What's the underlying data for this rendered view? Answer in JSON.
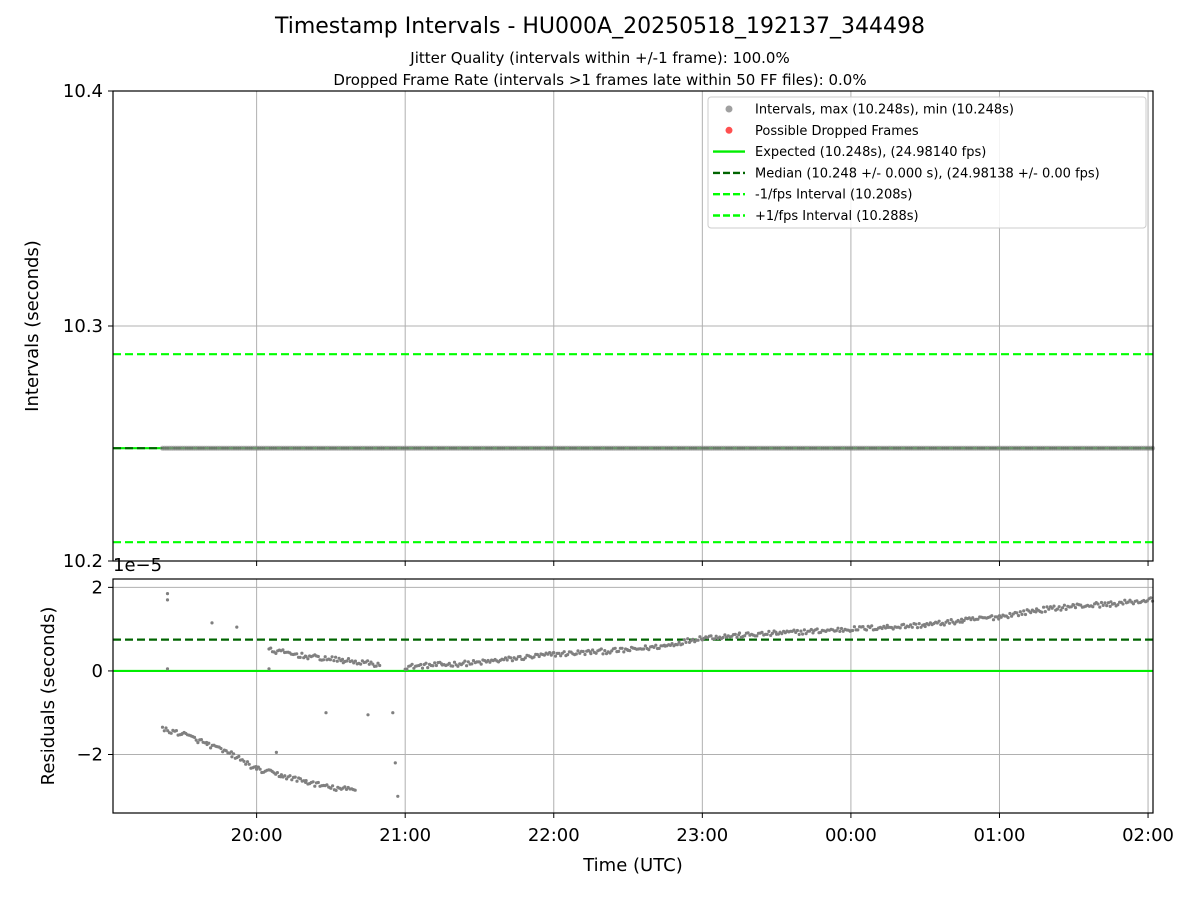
{
  "title": "Timestamp Intervals - HU000A_20250518_192137_344498",
  "subtitles": [
    "Jitter Quality (intervals within +/-1 frame): 100.0%",
    "Dropped Frame Rate (intervals >1 frames late within 50 FF files): 0.0%"
  ],
  "colors": {
    "intervals": "#808080",
    "dropped": "#ff5050",
    "expected": "#00ee00",
    "median": "#006400",
    "fps_bounds": "#00ff00",
    "grid": "#b0b0b0"
  },
  "chart_data": [
    {
      "type": "scatter",
      "ylabel": "Intervals (seconds)",
      "ylim": [
        10.2,
        10.4
      ],
      "yticks": [
        "10.2",
        "10.3",
        "10.4"
      ],
      "xlim": [
        "2025-05-18T19:02",
        "2025-05-19T02:02"
      ],
      "xticks": [
        "20:00",
        "21:00",
        "22:00",
        "23:00",
        "00:00",
        "01:00",
        "02:00"
      ],
      "grid": true,
      "legend_position": "upper right",
      "legend": [
        {
          "label": "Intervals, max (10.248s), min (10.248s)",
          "marker": "dot",
          "color": "#a0a0a0"
        },
        {
          "label": "Possible Dropped Frames",
          "marker": "dot",
          "color": "#ff5050"
        },
        {
          "label": "Expected (10.248s), (24.98140 fps)",
          "marker": "solid",
          "color": "#00ee00"
        },
        {
          "label": "Median (10.248 +/- 0.000 s), (24.98138 +/- 0.00 fps)",
          "marker": "dashed",
          "color": "#006400"
        },
        {
          "label": "-1/fps Interval (10.208s)",
          "marker": "dashed",
          "color": "#00ff00"
        },
        {
          "label": "+1/fps Interval (10.288s)",
          "marker": "dashed",
          "color": "#00ff00"
        }
      ],
      "reference_lines": [
        {
          "name": "Expected",
          "value": 10.248,
          "style": "solid"
        },
        {
          "name": "Median",
          "value": 10.248,
          "style": "dashed"
        },
        {
          "name": "-1/fps Interval",
          "value": 10.208,
          "style": "dashed"
        },
        {
          "name": "+1/fps Interval",
          "value": 10.288,
          "style": "dashed"
        }
      ],
      "series": [
        {
          "x_range": [
            "2025-05-18T19:22",
            "2025-05-19T02:02"
          ],
          "value": 10.248
        }
      ]
    },
    {
      "type": "scatter",
      "ylabel": "Residuals (seconds)",
      "yscale_label": "1e−5",
      "ylim": [
        -3.4,
        2.2
      ],
      "yticks": [
        "−2",
        "0",
        "2"
      ],
      "xlabel": "Time (UTC)",
      "xlim": [
        "2025-05-18T19:02",
        "2025-05-19T02:02"
      ],
      "xticks": [
        "20:00",
        "21:00",
        "22:00",
        "23:00",
        "00:00",
        "01:00",
        "02:00"
      ],
      "grid": true,
      "reference_lines": [
        {
          "name": "Expected",
          "value": 0,
          "style": "solid"
        },
        {
          "name": "Median",
          "value": 0.75,
          "style": "dashed"
        }
      ],
      "series": [
        {
          "segment": "main trend",
          "x": [
            "2025-05-18T21:00",
            "2025-05-18T21:15",
            "2025-05-18T21:30",
            "2025-05-18T21:45",
            "2025-05-18T22:00",
            "2025-05-18T22:15",
            "2025-05-18T22:30",
            "2025-05-18T22:45",
            "2025-05-18T23:00",
            "2025-05-18T23:15",
            "2025-05-18T23:30",
            "2025-05-18T23:45",
            "2025-05-19T00:00",
            "2025-05-19T00:15",
            "2025-05-19T00:30",
            "2025-05-19T00:45",
            "2025-05-19T01:00",
            "2025-05-19T01:15",
            "2025-05-19T01:30",
            "2025-05-19T01:45",
            "2025-05-19T02:02"
          ],
          "y": [
            0.1,
            0.15,
            0.2,
            0.3,
            0.4,
            0.45,
            0.5,
            0.6,
            0.8,
            0.85,
            0.9,
            0.95,
            1.0,
            1.05,
            1.1,
            1.2,
            1.3,
            1.45,
            1.55,
            1.6,
            1.7
          ]
        },
        {
          "segment": "early cluster",
          "x": [
            "2025-05-18T20:05",
            "2025-05-18T20:20",
            "2025-05-18T20:35",
            "2025-05-18T20:50"
          ],
          "y": [
            0.5,
            0.35,
            0.25,
            0.15
          ]
        },
        {
          "segment": "lower trend",
          "x": [
            "2025-05-18T19:22",
            "2025-05-18T19:30",
            "2025-05-18T19:40",
            "2025-05-18T19:50",
            "2025-05-18T20:00",
            "2025-05-18T20:10",
            "2025-05-18T20:20",
            "2025-05-18T20:30",
            "2025-05-18T20:40"
          ],
          "y": [
            -1.4,
            -1.5,
            -1.75,
            -2.0,
            -2.35,
            -2.5,
            -2.65,
            -2.8,
            -2.85
          ]
        },
        {
          "segment": "outliers",
          "x": [
            "2025-05-18T19:24",
            "2025-05-18T19:24",
            "2025-05-18T19:24",
            "2025-05-18T19:42",
            "2025-05-18T19:52",
            "2025-05-18T20:05",
            "2025-05-18T20:08",
            "2025-05-18T20:28",
            "2025-05-18T20:45",
            "2025-05-18T20:55",
            "2025-05-18T20:56",
            "2025-05-18T20:57"
          ],
          "y": [
            1.85,
            1.7,
            0.05,
            1.15,
            1.05,
            0.05,
            -1.95,
            -1.0,
            -1.05,
            -1.0,
            -2.2,
            -3.0
          ]
        }
      ]
    }
  ]
}
